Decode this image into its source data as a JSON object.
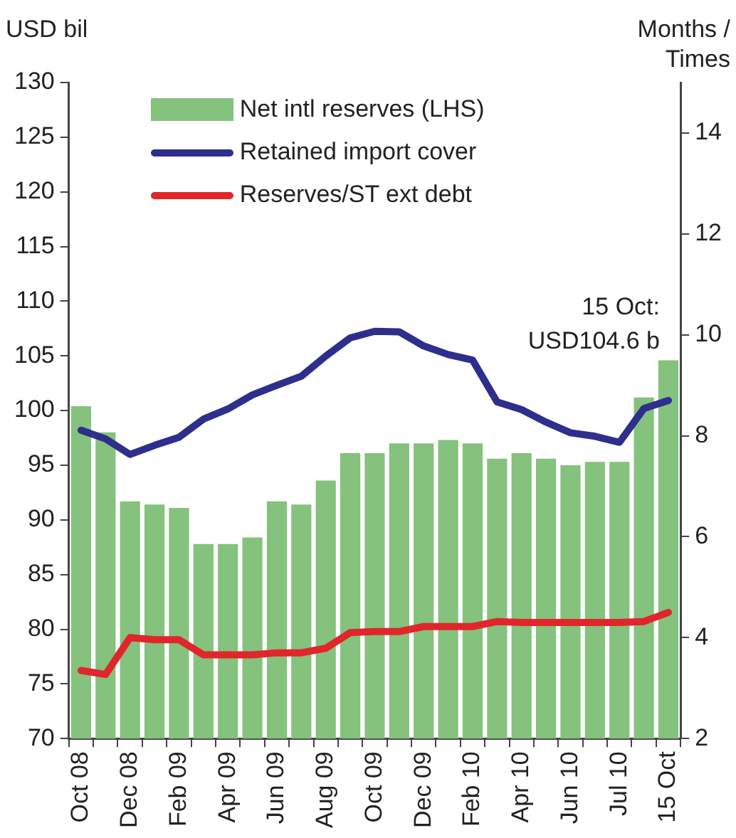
{
  "chart_data": {
    "type": "bar",
    "ylabel": "USD bil",
    "y2label": "Months / Times",
    "categories": [
      "Oct 08",
      null,
      "Dec 08",
      null,
      "Feb 09",
      null,
      "Apr 09",
      null,
      "Jun 09",
      null,
      "Aug 09",
      null,
      "Oct 09",
      null,
      "Dec 09",
      null,
      "Feb 10",
      null,
      "Apr 10",
      null,
      "Jun 10",
      null,
      "Jul 10",
      null,
      "15 Oct"
    ],
    "series": [
      {
        "name": "Net intl reserves (LHS)",
        "color": "#84c27d",
        "values": [
          100.4,
          98.0,
          91.7,
          91.4,
          91.1,
          87.8,
          87.8,
          88.4,
          91.7,
          91.4,
          93.6,
          96.1,
          96.1,
          97.0,
          97.0,
          97.3,
          97.0,
          95.6,
          96.1,
          95.6,
          95.0,
          95.3,
          95.3,
          101.2,
          104.6
        ]
      },
      {
        "name": "Retained import cover",
        "type": "line",
        "axis": "y2",
        "color": "#2e2e8c",
        "values": [
          8.11,
          7.94,
          7.63,
          7.81,
          7.97,
          8.33,
          8.53,
          8.81,
          9.0,
          9.18,
          9.58,
          9.94,
          10.07,
          10.06,
          9.78,
          9.61,
          9.5,
          8.67,
          8.52,
          8.27,
          8.06,
          7.99,
          7.87,
          8.54,
          8.7
        ]
      },
      {
        "name": "Reserves/ST ext debt",
        "type": "line",
        "axis": "y2",
        "color": "#e0262a",
        "values": [
          3.35,
          3.27,
          4.0,
          3.96,
          3.96,
          3.66,
          3.66,
          3.66,
          3.7,
          3.7,
          3.79,
          4.1,
          4.12,
          4.12,
          4.22,
          4.22,
          4.22,
          4.32,
          4.3,
          4.3,
          4.3,
          4.3,
          4.3,
          4.32,
          4.5
        ]
      }
    ],
    "ylim": [
      70,
      130
    ],
    "yticks": [
      70,
      75,
      80,
      85,
      90,
      95,
      100,
      105,
      110,
      115,
      120,
      125,
      130
    ],
    "y2lim": [
      2,
      15
    ],
    "y2ticks": [
      2,
      4,
      6,
      8,
      10,
      12,
      14
    ],
    "legend": "top",
    "marker": "none",
    "annotations": [
      {
        "text": "15 Oct:\nUSD104.6 b",
        "x": "15 Oct",
        "y": 104.6
      }
    ]
  }
}
